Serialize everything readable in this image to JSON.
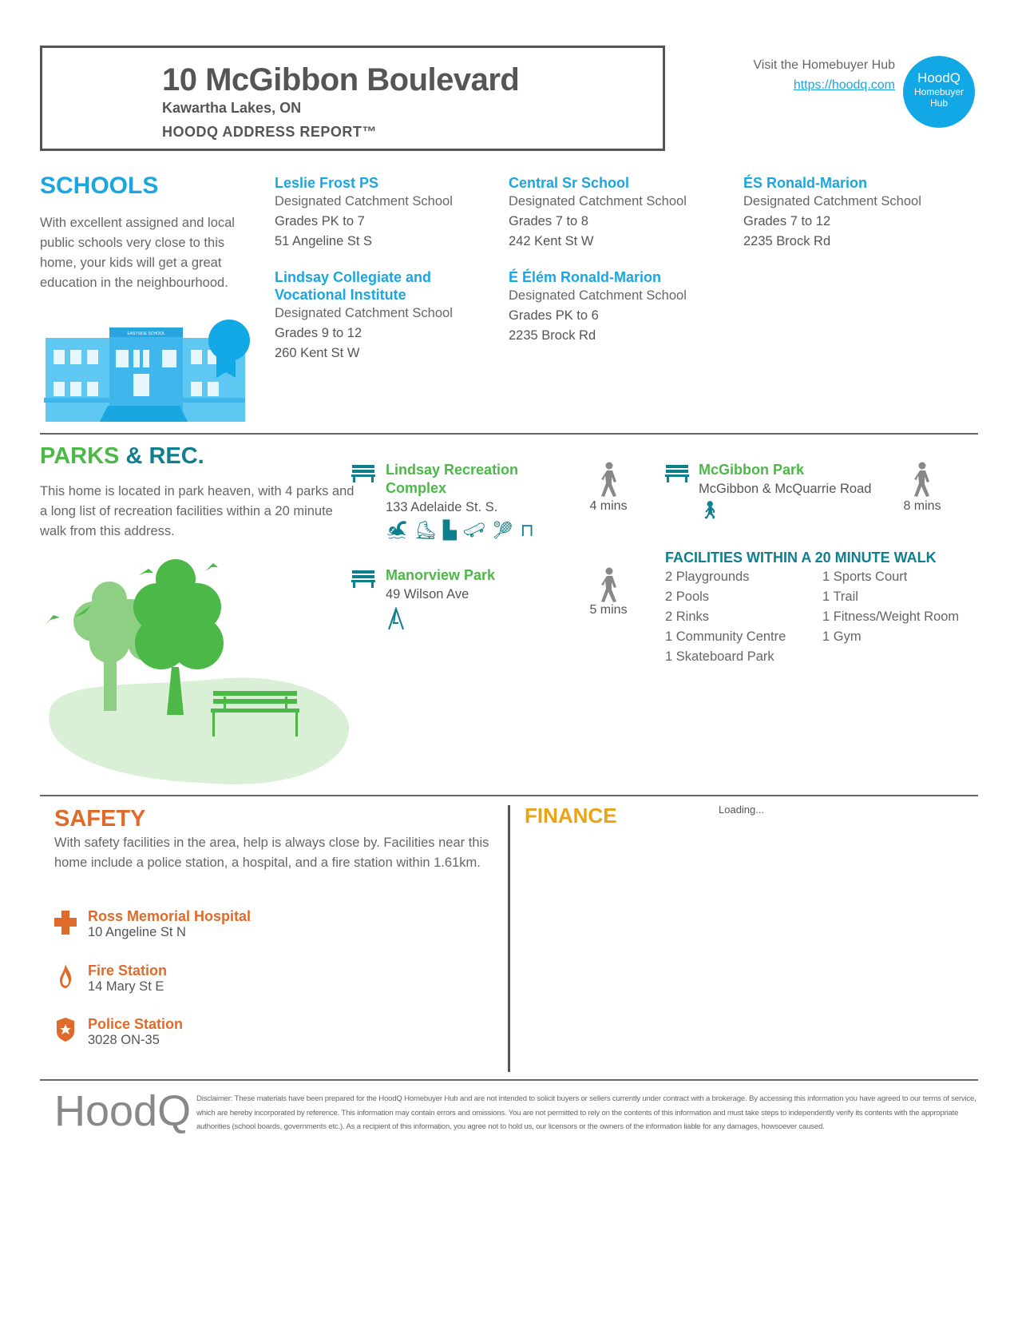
{
  "header": {
    "title": "10 McGibbon Boulevard",
    "city": "Kawartha Lakes, ON",
    "report": "HOODQ ADDRESS REPORT™"
  },
  "hub": {
    "visit": "Visit the Homebuyer Hub",
    "link": "https://hoodq.com",
    "badge_title": "HoodQ",
    "badge_line1": "Homebuyer",
    "badge_line2": "Hub",
    "color": "#12a8e6"
  },
  "schools": {
    "heading": "SCHOOLS",
    "color": "#1aa6e0",
    "description": "With excellent assigned and local public schools very close to this home, your kids will get a great education in the neighbourhood.",
    "building_sign": "EASTSIDE SCHOOL",
    "items": [
      {
        "name": "Leslie Frost PS",
        "type": "Designated Catchment School",
        "grades": "Grades PK to 7",
        "address": "51 Angeline St S"
      },
      {
        "name": "Central Sr School",
        "type": "Designated Catchment School",
        "grades": "Grades 7 to 8",
        "address": "242 Kent St W"
      },
      {
        "name": "ÉS Ronald-Marion",
        "type": "Designated Catchment School",
        "grades": "Grades 7 to 12",
        "address": "2235 Brock Rd"
      },
      {
        "name": "Lindsay Collegiate and Vocational Institute",
        "type": "Designated Catchment School",
        "grades": "Grades 9 to 12",
        "address": "260 Kent St W"
      },
      {
        "name": "É Élém Ronald-Marion",
        "type": "Designated Catchment School",
        "grades": "Grades PK to 6",
        "address": "2235 Brock Rd"
      }
    ]
  },
  "parks": {
    "heading_a": "PARKS",
    "heading_amp": "&",
    "heading_b": "REC.",
    "description": "This home is located in park heaven, with 4 parks and a long list of recreation facilities within a 20 minute walk from this address.",
    "items": [
      {
        "name": "Lindsay Recreation Complex",
        "address": "133 Adelaide St. S.",
        "walk": "4 mins",
        "icons": [
          "swimming-icon",
          "skate-icon",
          "community-centre-icon",
          "skateboard-icon",
          "tennis-icon",
          "bench-icon"
        ]
      },
      {
        "name": "McGibbon Park",
        "address": "McGibbon & McQuarrie Road",
        "walk": "8 mins",
        "icons": [
          "hiking-icon"
        ]
      },
      {
        "name": "Manorview Park",
        "address": "49 Wilson Ave",
        "walk": "5 mins",
        "icons": [
          "playground-icon"
        ]
      }
    ],
    "facilities_heading": "FACILITIES WITHIN A 20 MINUTE WALK",
    "facilities_col1": [
      "2 Playgrounds",
      "2 Pools",
      "2 Rinks",
      "1 Community Centre",
      "1 Skateboard Park"
    ],
    "facilities_col2": [
      "1 Sports Court",
      "1 Trail",
      "1 Fitness/Weight Room",
      "1 Gym"
    ]
  },
  "safety": {
    "heading": "SAFETY",
    "color": "#e06a2a",
    "description": "With safety facilities in the area, help is always close by. Facilities near this home include a police station, a hospital, and a fire station within 1.61km.",
    "items": [
      {
        "name": "Ross Memorial Hospital",
        "address": "10 Angeline St N"
      },
      {
        "name": "Fire Station",
        "address": "14 Mary St E"
      },
      {
        "name": "Police Station",
        "address": "3028 ON-35"
      }
    ]
  },
  "finance": {
    "heading": "FINANCE",
    "color": "#e8a317",
    "status": "Loading..."
  },
  "footer": {
    "logo": "HoodQ",
    "disclaimer": "Disclaimer: These materials have been prepared for the HoodQ Homebuyer Hub and are not intended to solicit buyers or sellers currently under contract with a brokerage. By accessing this information you have agreed to our terms of service, which are hereby incorporated by reference. This information may contain errors and omissions. You are not permitted to rely on the contents of this information and must take steps to independently verify its contents with the appropriate authorities (school boards, governments etc.). As a recipient of this information, you agree not to hold us, our licensors or the owners of the information liable for any damages, howsoever caused."
  }
}
